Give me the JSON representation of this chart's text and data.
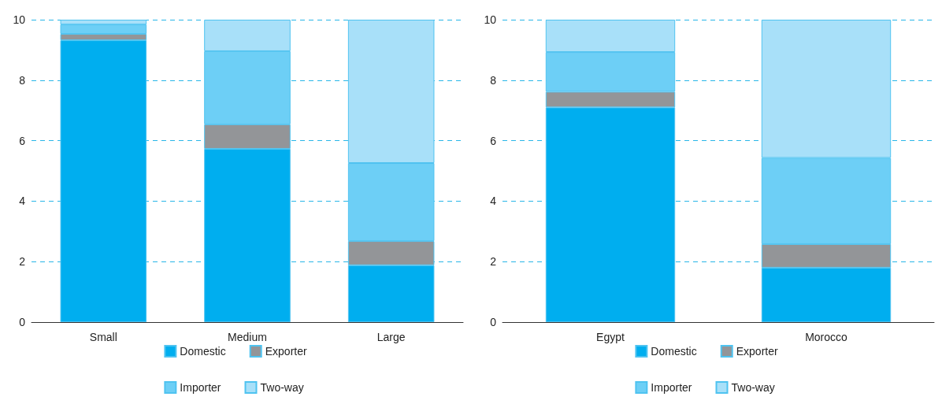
{
  "chart_data": [
    {
      "type": "bar",
      "stacked": true,
      "categories": [
        "Small",
        "Medium",
        "Large"
      ],
      "ylim": [
        0,
        10
      ],
      "yticks": [
        0,
        2,
        4,
        6,
        8,
        10
      ],
      "grid": "y",
      "legend": "bottom",
      "series": [
        {
          "name": "Domestic",
          "color": "#00aeef",
          "values": [
            9.32,
            5.73,
            1.88
          ]
        },
        {
          "name": "Exporter",
          "color": "#939598",
          "values": [
            0.21,
            0.81,
            0.8
          ]
        },
        {
          "name": "Importer",
          "color": "#6dcff6",
          "values": [
            0.31,
            2.42,
            2.58
          ]
        },
        {
          "name": "Two-way",
          "color": "#a8e0f9",
          "values": [
            0.16,
            1.04,
            4.74
          ]
        }
      ]
    },
    {
      "type": "bar",
      "stacked": true,
      "categories": [
        "Egypt",
        "Morocco"
      ],
      "ylim": [
        0,
        10
      ],
      "yticks": [
        0,
        2,
        4,
        6,
        8,
        10
      ],
      "grid": "y",
      "legend": "bottom",
      "series": [
        {
          "name": "Domestic",
          "color": "#00aeef",
          "values": [
            7.1,
            1.8
          ]
        },
        {
          "name": "Exporter",
          "color": "#939598",
          "values": [
            0.52,
            0.78
          ]
        },
        {
          "name": "Importer",
          "color": "#6dcff6",
          "values": [
            1.31,
            2.85
          ]
        },
        {
          "name": "Two-way",
          "color": "#a8e0f9",
          "values": [
            1.07,
            4.57
          ]
        }
      ]
    }
  ]
}
